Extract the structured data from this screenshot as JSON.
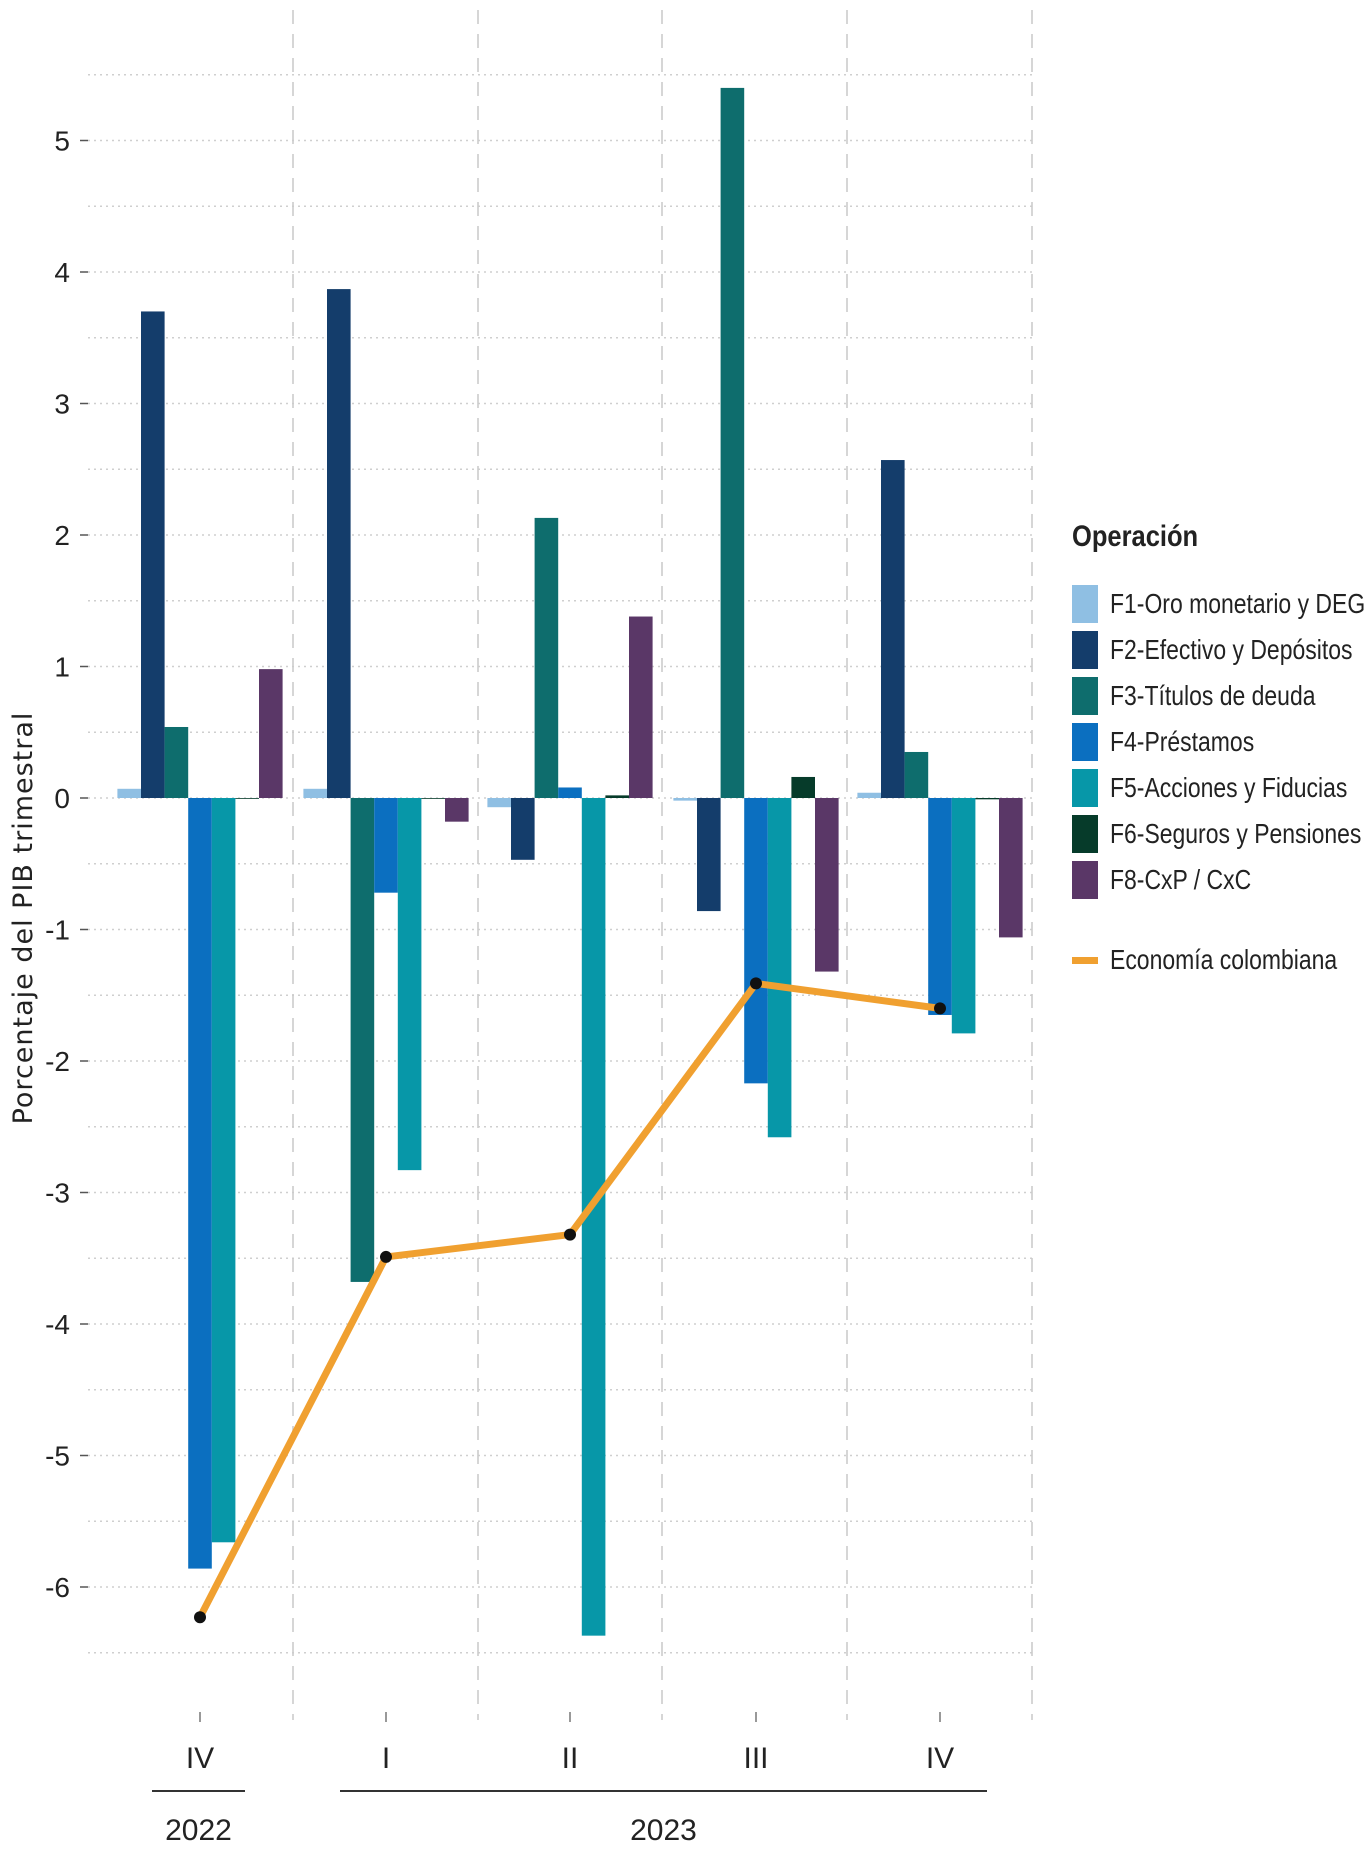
{
  "chart_data": {
    "type": "bar",
    "ylabel": "Porcentaje del PIB trimestral",
    "ylim": [
      -6.7,
      5.9
    ],
    "yticks": [
      -6,
      -5,
      -4,
      -3,
      -2,
      -1,
      0,
      1,
      2,
      3,
      4,
      5
    ],
    "categories": [
      "IV",
      "I",
      "II",
      "III",
      "IV"
    ],
    "year_groups": [
      {
        "label": "2022",
        "start": 0,
        "end": 0
      },
      {
        "label": "2023",
        "start": 1,
        "end": 4
      }
    ],
    "series": [
      {
        "name": "F1-Oro monetario y DEG",
        "color": "#8fbfe3",
        "values": [
          0.07,
          0.07,
          -0.07,
          -0.02,
          0.04
        ]
      },
      {
        "name": "F2-Efectivo y Depósitos",
        "color": "#143d6b",
        "values": [
          3.7,
          3.87,
          -0.47,
          -0.86,
          2.57
        ]
      },
      {
        "name": "F3-Títulos de deuda",
        "color": "#0e6d6d",
        "values": [
          0.54,
          -3.68,
          2.13,
          5.4,
          0.35
        ]
      },
      {
        "name": "F4-Préstamos",
        "color": "#0b6fc0",
        "values": [
          -5.86,
          -0.72,
          0.08,
          -2.17,
          -1.65
        ]
      },
      {
        "name": "F5-Acciones y Fiducias",
        "color": "#0797a8",
        "values": [
          -5.66,
          -2.83,
          -6.37,
          -2.58,
          -1.79
        ]
      },
      {
        "name": "F6-Seguros y Pensiones",
        "color": "#063b2a",
        "values": [
          0.0,
          0.0,
          0.02,
          0.16,
          -0.01
        ]
      },
      {
        "name": "F8-CxP / CxC",
        "color": "#5a3767",
        "values": [
          0.98,
          -0.18,
          1.38,
          -1.32,
          -1.06
        ]
      }
    ],
    "line": {
      "name": "Economía colombiana",
      "color": "#f0a030",
      "values": [
        -6.23,
        -3.49,
        -3.32,
        -1.41,
        -1.6
      ]
    },
    "legend_title": "Operación",
    "legend_position": "right",
    "grid": true
  }
}
